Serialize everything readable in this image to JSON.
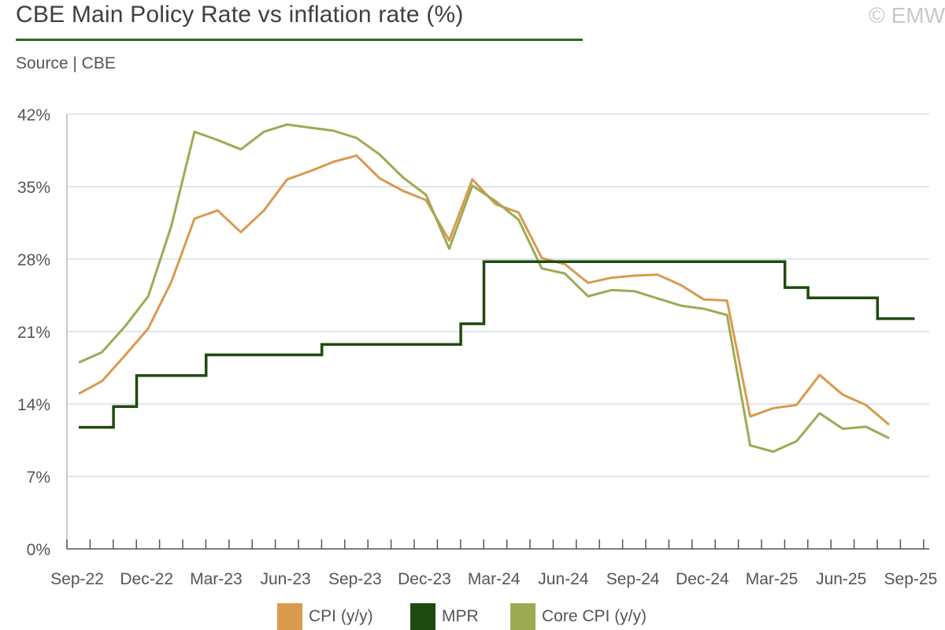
{
  "header": {
    "title": "CBE Main Policy Rate vs inflation rate (%)",
    "copyright": "© EMW",
    "source": "Source | CBE"
  },
  "chart_data": {
    "type": "line",
    "title": "CBE Main Policy Rate vs inflation rate (%)",
    "xlabel": "",
    "ylabel": "",
    "ylim": [
      0,
      42
    ],
    "y_ticks": [
      0,
      7,
      14,
      21,
      28,
      35,
      42
    ],
    "y_tick_labels": [
      "0%",
      "7%",
      "14%",
      "21%",
      "28%",
      "35%",
      "42%"
    ],
    "x_tick_labels": [
      "Sep-22",
      "Dec-22",
      "Mar-23",
      "Jun-23",
      "Sep-23",
      "Dec-23",
      "Mar-24",
      "Jun-24",
      "Sep-24",
      "Dec-24",
      "Mar-25",
      "Jun-25",
      "Sep-25"
    ],
    "months": [
      "Sep-22",
      "Oct-22",
      "Nov-22",
      "Dec-22",
      "Jan-23",
      "Feb-23",
      "Mar-23",
      "Apr-23",
      "May-23",
      "Jun-23",
      "Jul-23",
      "Aug-23",
      "Sep-23",
      "Oct-23",
      "Nov-23",
      "Dec-23",
      "Jan-24",
      "Feb-24",
      "Mar-24",
      "Apr-24",
      "May-24",
      "Jun-24",
      "Jul-24",
      "Aug-24",
      "Sep-24",
      "Oct-24",
      "Nov-24",
      "Dec-24",
      "Jan-25",
      "Feb-25",
      "Mar-25",
      "Apr-25",
      "May-25",
      "Jun-25",
      "Jul-25",
      "Aug-25",
      "Sep-25"
    ],
    "series": [
      {
        "name": "CPI (y/y)",
        "color": "#d99a4e",
        "shape": "line",
        "values": [
          15.0,
          16.2,
          18.7,
          21.3,
          25.8,
          31.9,
          32.7,
          30.6,
          32.7,
          35.7,
          36.5,
          37.4,
          38.0,
          35.8,
          34.6,
          33.7,
          29.8,
          35.7,
          33.3,
          32.5,
          28.1,
          27.5,
          25.7,
          26.2,
          26.4,
          26.5,
          25.5,
          24.1,
          24.0,
          12.8,
          13.6,
          13.9,
          16.8,
          14.9,
          13.9,
          12.0,
          null
        ]
      },
      {
        "name": "MPR",
        "color": "#1f4a0f",
        "shape": "step",
        "values": [
          11.75,
          11.75,
          13.75,
          16.75,
          16.75,
          16.75,
          18.75,
          18.75,
          18.75,
          18.75,
          18.75,
          19.75,
          19.75,
          19.75,
          19.75,
          19.75,
          19.75,
          21.75,
          27.75,
          27.75,
          27.75,
          27.75,
          27.75,
          27.75,
          27.75,
          27.75,
          27.75,
          27.75,
          27.75,
          27.75,
          27.75,
          25.25,
          24.25,
          24.25,
          24.25,
          22.25,
          22.25
        ]
      },
      {
        "name": "Core CPI (y/y)",
        "color": "#9cab52",
        "shape": "line",
        "values": [
          18.0,
          19.0,
          21.5,
          24.4,
          31.2,
          40.3,
          39.5,
          38.6,
          40.3,
          41.0,
          40.7,
          40.4,
          39.7,
          38.1,
          35.9,
          34.2,
          29.0,
          35.1,
          33.6,
          31.8,
          27.1,
          26.6,
          24.4,
          25.0,
          24.9,
          24.2,
          23.5,
          23.2,
          22.6,
          10.0,
          9.4,
          10.4,
          13.1,
          11.6,
          11.8,
          10.7,
          null
        ]
      }
    ],
    "legend": {
      "position": "bottom-center",
      "items": [
        "CPI (y/y)",
        "MPR",
        "Core CPI (y/y)"
      ]
    }
  }
}
